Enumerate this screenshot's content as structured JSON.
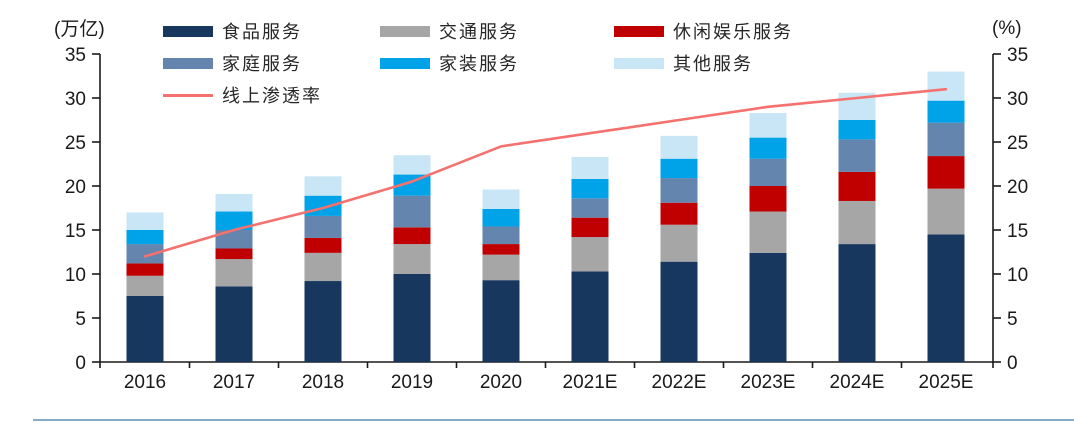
{
  "legend": {
    "items": [
      {
        "label": "食品服务",
        "color": "#17375E",
        "marker": "box"
      },
      {
        "label": "交通服务",
        "color": "#A6A6A6",
        "marker": "box"
      },
      {
        "label": "休闲娱乐服务",
        "color": "#C00000",
        "marker": "box"
      },
      {
        "label": "家庭服务",
        "color": "#6385AE",
        "marker": "box"
      },
      {
        "label": "家装服务",
        "color": "#00A2E8",
        "marker": "box"
      },
      {
        "label": "其他服务",
        "color": "#C9E6F7",
        "marker": "box"
      },
      {
        "label": "线上渗透率",
        "color": "#F4716E",
        "marker": "line"
      }
    ]
  },
  "chart_data": {
    "type": "bar",
    "subtype": "stacked-bars-with-line-overlay",
    "categories": [
      "2016",
      "2017",
      "2018",
      "2019",
      "2020",
      "2021E",
      "2022E",
      "2023E",
      "2024E",
      "2025E"
    ],
    "series": [
      {
        "name": "食品服务",
        "type": "bar",
        "color": "#17375E",
        "values": [
          7.5,
          8.6,
          9.2,
          10.0,
          9.3,
          10.3,
          11.4,
          12.4,
          13.4,
          14.5
        ]
      },
      {
        "name": "交通服务",
        "type": "bar",
        "color": "#A6A6A6",
        "values": [
          2.3,
          3.1,
          3.2,
          3.4,
          2.9,
          3.9,
          4.2,
          4.7,
          4.9,
          5.2
        ]
      },
      {
        "name": "休闲娱乐服务",
        "type": "bar",
        "color": "#C00000",
        "values": [
          1.4,
          1.2,
          1.7,
          1.9,
          1.2,
          2.2,
          2.5,
          2.9,
          3.3,
          3.7
        ]
      },
      {
        "name": "家庭服务",
        "type": "bar",
        "color": "#6385AE",
        "values": [
          2.2,
          2.1,
          2.5,
          3.6,
          2.0,
          2.2,
          2.8,
          3.1,
          3.7,
          3.8
        ]
      },
      {
        "name": "家装服务",
        "type": "bar",
        "color": "#00A2E8",
        "values": [
          1.6,
          2.1,
          2.3,
          2.4,
          2.0,
          2.2,
          2.2,
          2.4,
          2.2,
          2.5
        ]
      },
      {
        "name": "其他服务",
        "type": "bar",
        "color": "#C9E6F7",
        "values": [
          2.0,
          2.0,
          2.2,
          2.2,
          2.2,
          2.5,
          2.6,
          2.8,
          3.1,
          3.3
        ]
      },
      {
        "name": "线上渗透率",
        "type": "line",
        "axis": "right",
        "color": "#F4716E",
        "values": [
          12.0,
          15.0,
          17.5,
          20.5,
          24.5,
          26.0,
          27.5,
          29.0,
          30.0,
          31.0
        ]
      }
    ],
    "left_axis": {
      "label": "(万亿)",
      "min": 0,
      "max": 35,
      "step": 5
    },
    "right_axis": {
      "label": "(%)",
      "min": 0,
      "max": 35,
      "step": 5
    },
    "legend_position": "top",
    "grid": false
  }
}
